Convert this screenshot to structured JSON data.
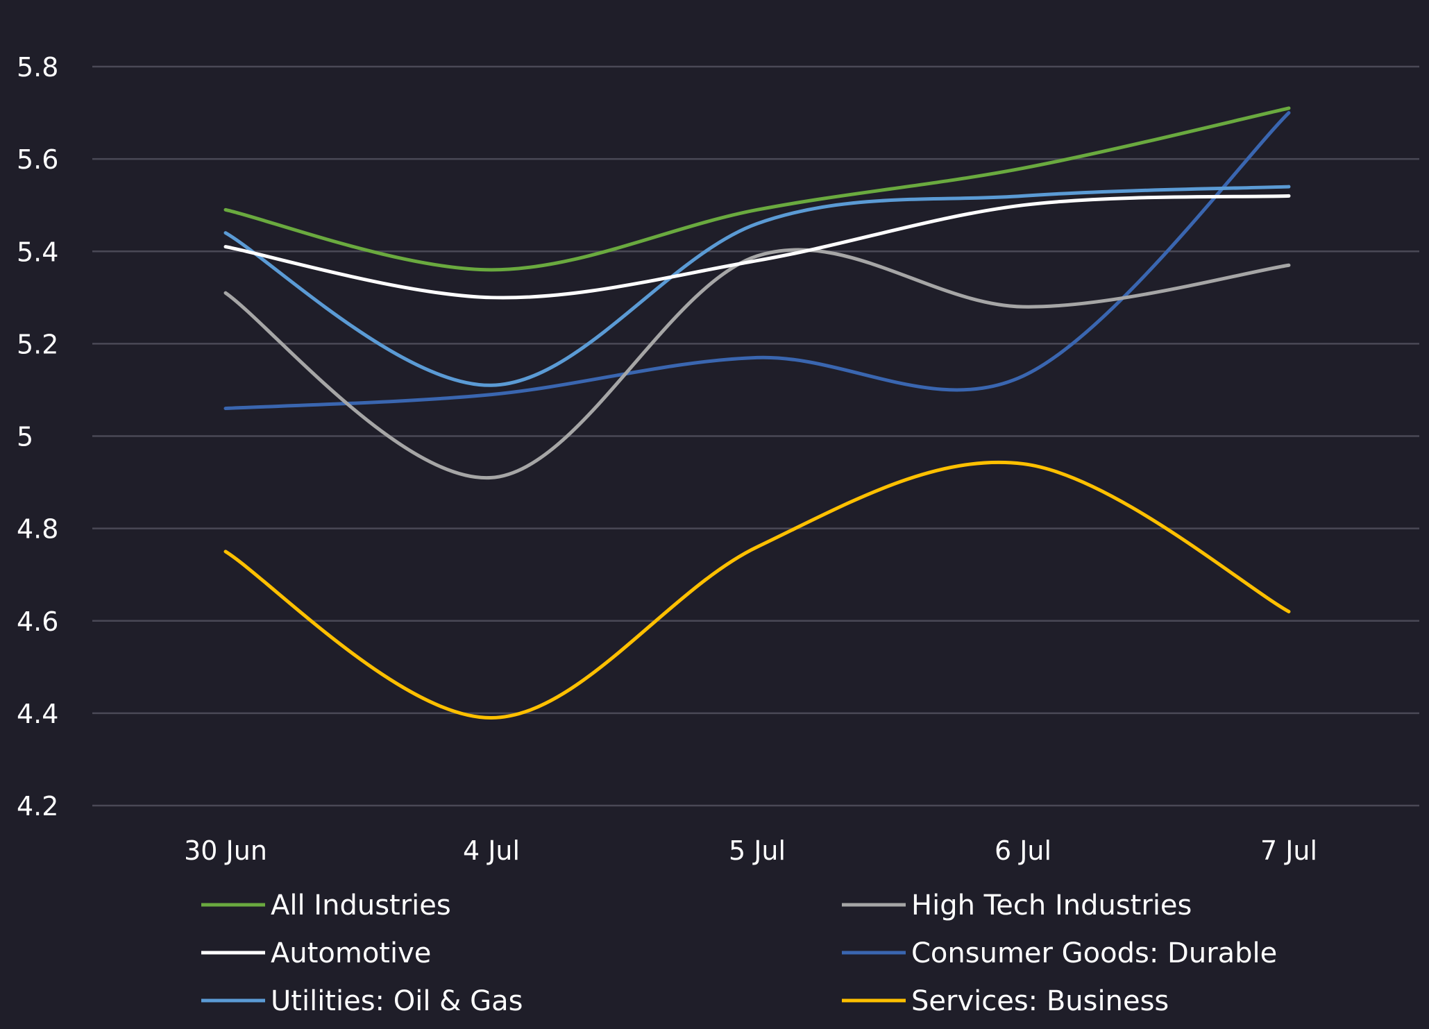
{
  "chart_data": {
    "type": "line",
    "smooth": true,
    "title": "",
    "xlabel": "",
    "ylabel": "",
    "categories": [
      "30 Jun",
      "4 Jul",
      "5 Jul",
      "6 Jul",
      "7 Jul"
    ],
    "ylim": [
      4.2,
      5.8
    ],
    "yticks": [
      5.8,
      5.6,
      5.4,
      5.2,
      5,
      4.8,
      4.6,
      4.4,
      4.2
    ],
    "grid": true,
    "legend_position": "bottom",
    "series": [
      {
        "name": "All Industries",
        "color": "#6aaa3f",
        "values": [
          5.49,
          5.36,
          5.49,
          5.58,
          5.71
        ]
      },
      {
        "name": "High Tech Industries",
        "color": "#a6a6a6",
        "values": [
          5.31,
          4.91,
          5.39,
          5.28,
          5.37
        ]
      },
      {
        "name": "Automotive",
        "color": "#ffffff",
        "values": [
          5.41,
          5.3,
          5.38,
          5.5,
          5.52
        ]
      },
      {
        "name": "Consumer Goods: Durable",
        "color": "#3a66b0",
        "values": [
          5.06,
          5.09,
          5.17,
          5.13,
          5.7
        ]
      },
      {
        "name": "Utilities: Oil & Gas",
        "color": "#5b9bd5",
        "values": [
          5.44,
          5.11,
          5.46,
          5.52,
          5.54
        ]
      },
      {
        "name": "Services: Business",
        "color": "#ffc000",
        "values": [
          4.75,
          4.39,
          4.76,
          4.94,
          4.62
        ]
      }
    ]
  }
}
